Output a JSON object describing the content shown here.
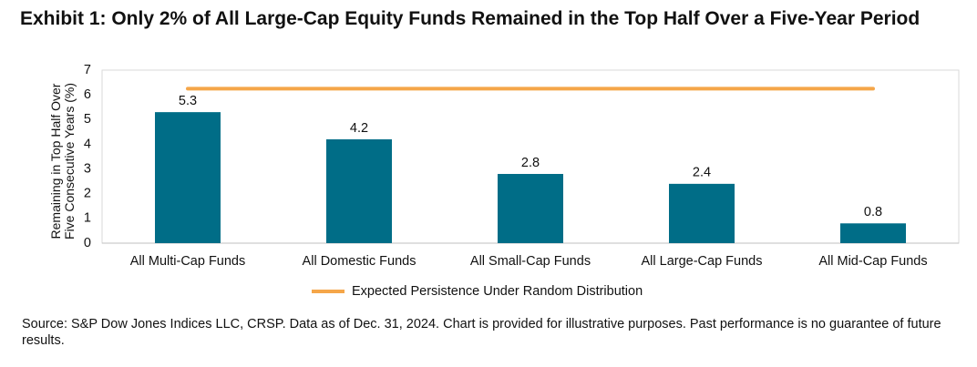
{
  "chart_data": {
    "type": "bar",
    "title": "Exhibit 1: Only 2% of All Large-Cap Equity Funds Remained in the Top Half Over a Five-Year Period",
    "y_label": "Remaining in Top Half Over Five Consecutive Years (%)",
    "categories": [
      "All Multi-Cap Funds",
      "All Domestic Funds",
      "All Small-Cap Funds",
      "All Large-Cap Funds",
      "All Mid-Cap Funds"
    ],
    "values": [
      5.3,
      4.2,
      2.8,
      2.4,
      0.8
    ],
    "color": "#006d87",
    "series": [
      {
        "name": "Expected Persistence Under Random Distribution",
        "type": "line",
        "color": "#f5a649",
        "values": [
          6.25,
          6.25,
          6.25,
          6.25,
          6.25
        ]
      }
    ],
    "ylim": [
      0,
      7
    ],
    "yticks": [
      0,
      1,
      2,
      3,
      4,
      5,
      6,
      7
    ],
    "legend": "bottom",
    "source": "Source: S&P Dow Jones Indices LLC, CRSP.  Data as of Dec. 31, 2024.  Chart is provided for illustrative purposes.  Past performance is no guarantee of future results."
  }
}
